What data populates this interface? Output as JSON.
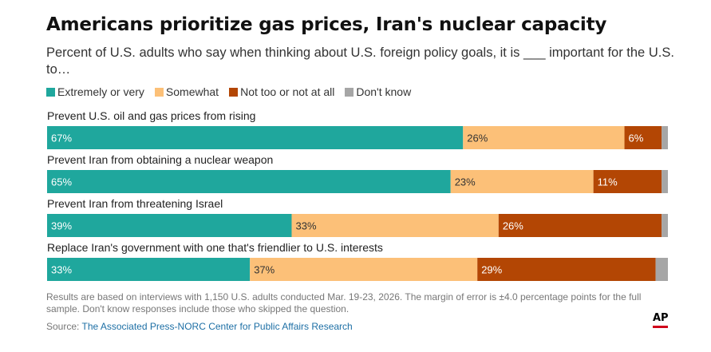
{
  "title": "Americans prioritize gas prices, Iran's nuclear capacity",
  "subtitle": "Percent of U.S. adults who say when thinking about U.S. foreign policy goals, it is ___ important for the U.S. to…",
  "colors": {
    "extremely": "#1fa79d",
    "somewhat": "#fcc078",
    "not": "#b34604",
    "dontknow": "#a6a6a6"
  },
  "chart_data": {
    "type": "bar",
    "orientation": "horizontal-stacked",
    "categories": [
      "Prevent U.S. oil and gas prices from rising",
      "Prevent Iran from obtaining a nuclear weapon",
      "Prevent Iran from threatening Israel",
      "Replace Iran's government with one that's friendlier to U.S. interests"
    ],
    "series": [
      {
        "name": "Extremely or very",
        "values": [
          67,
          65,
          39,
          33
        ],
        "labels": [
          "67%",
          "65%",
          "39%",
          "33%"
        ]
      },
      {
        "name": "Somewhat",
        "values": [
          26,
          23,
          33,
          37
        ],
        "labels": [
          "26%",
          "23%",
          "33%",
          "37%"
        ]
      },
      {
        "name": "Not too or not at all",
        "values": [
          6,
          11,
          26,
          29
        ],
        "labels": [
          "6%",
          "11%",
          "26%",
          "29%"
        ]
      },
      {
        "name": "Don't know",
        "values": [
          1,
          1,
          1,
          2
        ],
        "labels": [
          "",
          "",
          "",
          ""
        ]
      }
    ],
    "xlim": [
      0,
      100
    ],
    "legend": "top",
    "grid": false
  },
  "note": "Results are based on interviews with 1,150 U.S. adults conducted Mar. 19-23, 2026. The margin of error is ±4.0 percentage points for the full sample. Don't know responses include those who skipped the question.",
  "source_prefix": "Source: ",
  "source_link": "The Associated Press-NORC Center for Public Affairs Research",
  "logo_text": "AP"
}
